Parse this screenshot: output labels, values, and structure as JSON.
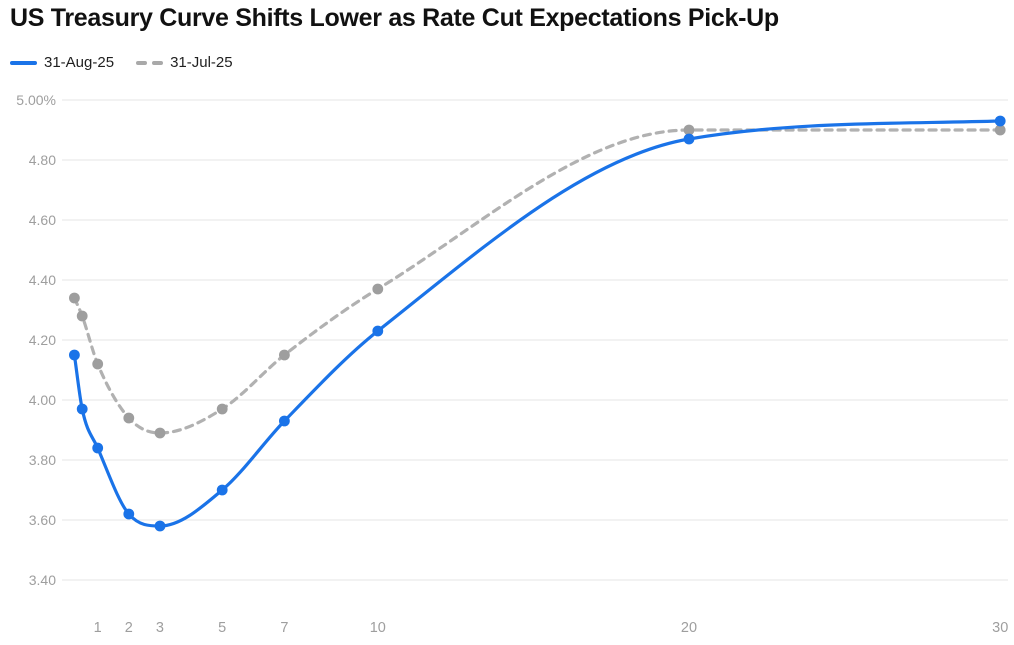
{
  "title": "US Treasury Curve Shifts Lower as Rate Cut Expectations Pick-Up",
  "legend": {
    "items": [
      {
        "label": "31-Aug-25",
        "style": "solid",
        "color": "#1a73e8"
      },
      {
        "label": "31-Jul-25",
        "style": "dashed",
        "color": "#a9a9a9"
      }
    ]
  },
  "colors": {
    "series_aug": "#1a73e8",
    "series_jul_line": "#b1b1b1",
    "series_jul_dot": "#9e9e9e",
    "gridline": "#e6e6e6",
    "axis_text": "#9e9e9e",
    "title_text": "#111111"
  },
  "chart_data": {
    "type": "line",
    "title": "US Treasury Curve Shifts Lower as Rate Cut Expectations Pick-Up",
    "xlabel": "",
    "ylabel": "",
    "x": [
      0.25,
      0.5,
      1,
      2,
      3,
      5,
      7,
      10,
      20,
      30
    ],
    "series": [
      {
        "name": "31-Aug-25",
        "color": "#1a73e8",
        "dash": false,
        "values": [
          4.15,
          3.97,
          3.84,
          3.62,
          3.58,
          3.7,
          3.93,
          4.23,
          4.87,
          4.93
        ]
      },
      {
        "name": "31-Jul-25",
        "color": "#b1b1b1",
        "dot_color": "#9e9e9e",
        "dash": true,
        "values": [
          4.34,
          4.28,
          4.12,
          3.94,
          3.89,
          3.97,
          4.15,
          4.37,
          4.9,
          4.9
        ]
      }
    ],
    "y_ticks": [
      {
        "value": 5.0,
        "label": "5.00%"
      },
      {
        "value": 4.8,
        "label": "4.80"
      },
      {
        "value": 4.6,
        "label": "4.60"
      },
      {
        "value": 4.4,
        "label": "4.40"
      },
      {
        "value": 4.2,
        "label": "4.20"
      },
      {
        "value": 4.0,
        "label": "4.00"
      },
      {
        "value": 3.8,
        "label": "3.80"
      },
      {
        "value": 3.6,
        "label": "3.60"
      },
      {
        "value": 3.4,
        "label": "3.40"
      }
    ],
    "x_ticks": [
      {
        "value": 1,
        "label": "1"
      },
      {
        "value": 2,
        "label": "2"
      },
      {
        "value": 3,
        "label": "3"
      },
      {
        "value": 5,
        "label": "5"
      },
      {
        "value": 7,
        "label": "7"
      },
      {
        "value": 10,
        "label": "10"
      },
      {
        "value": 20,
        "label": "20"
      },
      {
        "value": 30,
        "label": "30"
      }
    ],
    "ylim": [
      3.4,
      5.0
    ],
    "xlim": [
      0,
      30
    ],
    "grid": true,
    "legend_position": "top-left",
    "smooth": true
  }
}
